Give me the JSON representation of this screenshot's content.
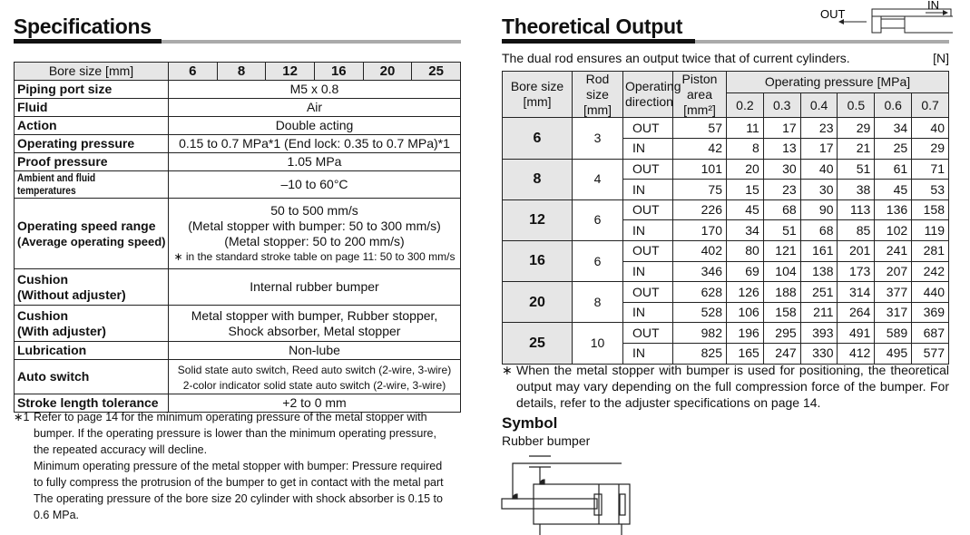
{
  "specifications": {
    "title": "Specifications",
    "header_label": "Bore size [mm]",
    "bore_sizes": [
      "6",
      "8",
      "12",
      "16",
      "20",
      "25"
    ],
    "rows": [
      {
        "label": "Piping port size",
        "value": "M5 x 0.8"
      },
      {
        "label": "Fluid",
        "value": "Air"
      },
      {
        "label": "Action",
        "value": "Double acting"
      },
      {
        "label": "Operating pressure",
        "value": "0.15 to 0.7 MPa*1 (End lock: 0.35 to 0.7 MPa)*1"
      },
      {
        "label": "Proof pressure",
        "value": "1.05 MPa"
      },
      {
        "label": "Ambient and fluid temperatures",
        "value": "–10 to 60°C"
      }
    ],
    "speed": {
      "label1": "Operating speed range",
      "label2": "(Average operating speed)",
      "line1": "50 to 500 mm/s",
      "line2": "(Metal stopper with bumper: 50 to 300 mm/s)",
      "line3": "(Metal stopper: 50 to 200 mm/s)",
      "line4": "∗  in the standard stroke table on page 11: 50 to 300 mm/s"
    },
    "cushion1": {
      "label1": "Cushion",
      "label2": "(Without adjuster)",
      "value": "Internal rubber bumper"
    },
    "cushion2": {
      "label1": "Cushion",
      "label2": "(With adjuster)",
      "line1": "Metal stopper with bumper, Rubber stopper,",
      "line2": "Shock absorber, Metal stopper"
    },
    "lubrication": {
      "label": "Lubrication",
      "value": "Non-lube"
    },
    "auto_switch": {
      "label": "Auto switch",
      "line1": "Solid state auto switch, Reed auto switch (2-wire, 3-wire)",
      "line2": "2-color indicator solid state auto switch (2-wire, 3-wire)"
    },
    "stroke": {
      "label": "Stroke length tolerance",
      "value": "+2 to 0 mm"
    },
    "footnote_mark": "∗1",
    "footnote": [
      "Refer to page 14 for the minimum operating pressure of the metal stopper with",
      "bumper. If the operating pressure is lower than the minimum operating pressure,",
      "the repeated accuracy will decline.",
      "Minimum operating pressure of the metal stopper with bumper: Pressure required",
      "to fully compress the protrusion of the bumper to get in contact with the metal part",
      "The operating pressure of the bore size 20 cylinder with shock absorber is 0.15 to",
      "0.6 MPa."
    ]
  },
  "output": {
    "title": "Theoretical Output",
    "diagram": {
      "out": "OUT",
      "in": "IN"
    },
    "intro": "The dual rod ensures an output twice that of current cylinders.",
    "unit": "[N]",
    "headers": {
      "bore1": "Bore size",
      "bore2": "[mm]",
      "rod1": "Rod size",
      "rod2": "[mm]",
      "dir1": "Operating",
      "dir2": "direction",
      "area1": "Piston area",
      "area2": "[mm²]",
      "pressure": "Operating pressure [MPa]"
    },
    "pressures": [
      "0.2",
      "0.3",
      "0.4",
      "0.5",
      "0.6",
      "0.7"
    ],
    "rows": [
      {
        "bore": "6",
        "rod": "3",
        "out": {
          "area": "57",
          "v": [
            "11",
            "17",
            "23",
            "29",
            "34",
            "40"
          ]
        },
        "in": {
          "area": "42",
          "v": [
            "8",
            "13",
            "17",
            "21",
            "25",
            "29"
          ]
        }
      },
      {
        "bore": "8",
        "rod": "4",
        "out": {
          "area": "101",
          "v": [
            "20",
            "30",
            "40",
            "51",
            "61",
            "71"
          ]
        },
        "in": {
          "area": "75",
          "v": [
            "15",
            "23",
            "30",
            "38",
            "45",
            "53"
          ]
        }
      },
      {
        "bore": "12",
        "rod": "6",
        "out": {
          "area": "226",
          "v": [
            "45",
            "68",
            "90",
            "113",
            "136",
            "158"
          ]
        },
        "in": {
          "area": "170",
          "v": [
            "34",
            "51",
            "68",
            "85",
            "102",
            "119"
          ]
        }
      },
      {
        "bore": "16",
        "rod": "6",
        "out": {
          "area": "402",
          "v": [
            "80",
            "121",
            "161",
            "201",
            "241",
            "281"
          ]
        },
        "in": {
          "area": "346",
          "v": [
            "69",
            "104",
            "138",
            "173",
            "207",
            "242"
          ]
        }
      },
      {
        "bore": "20",
        "rod": "8",
        "out": {
          "area": "628",
          "v": [
            "126",
            "188",
            "251",
            "314",
            "377",
            "440"
          ]
        },
        "in": {
          "area": "528",
          "v": [
            "106",
            "158",
            "211",
            "264",
            "317",
            "369"
          ]
        }
      },
      {
        "bore": "25",
        "rod": "10",
        "out": {
          "area": "982",
          "v": [
            "196",
            "295",
            "393",
            "491",
            "589",
            "687"
          ]
        },
        "in": {
          "area": "825",
          "v": [
            "165",
            "247",
            "330",
            "412",
            "495",
            "577"
          ]
        }
      }
    ],
    "dir_out": "OUT",
    "dir_in": "IN",
    "note_mark": "∗",
    "note": "When the metal stopper with bumper is used for positioning, the theoretical output may vary depending on the full compression force of the bumper. For details, refer to the adjuster specifications on page 14."
  },
  "symbol": {
    "title": "Symbol",
    "subtitle": "Rubber bumper"
  }
}
